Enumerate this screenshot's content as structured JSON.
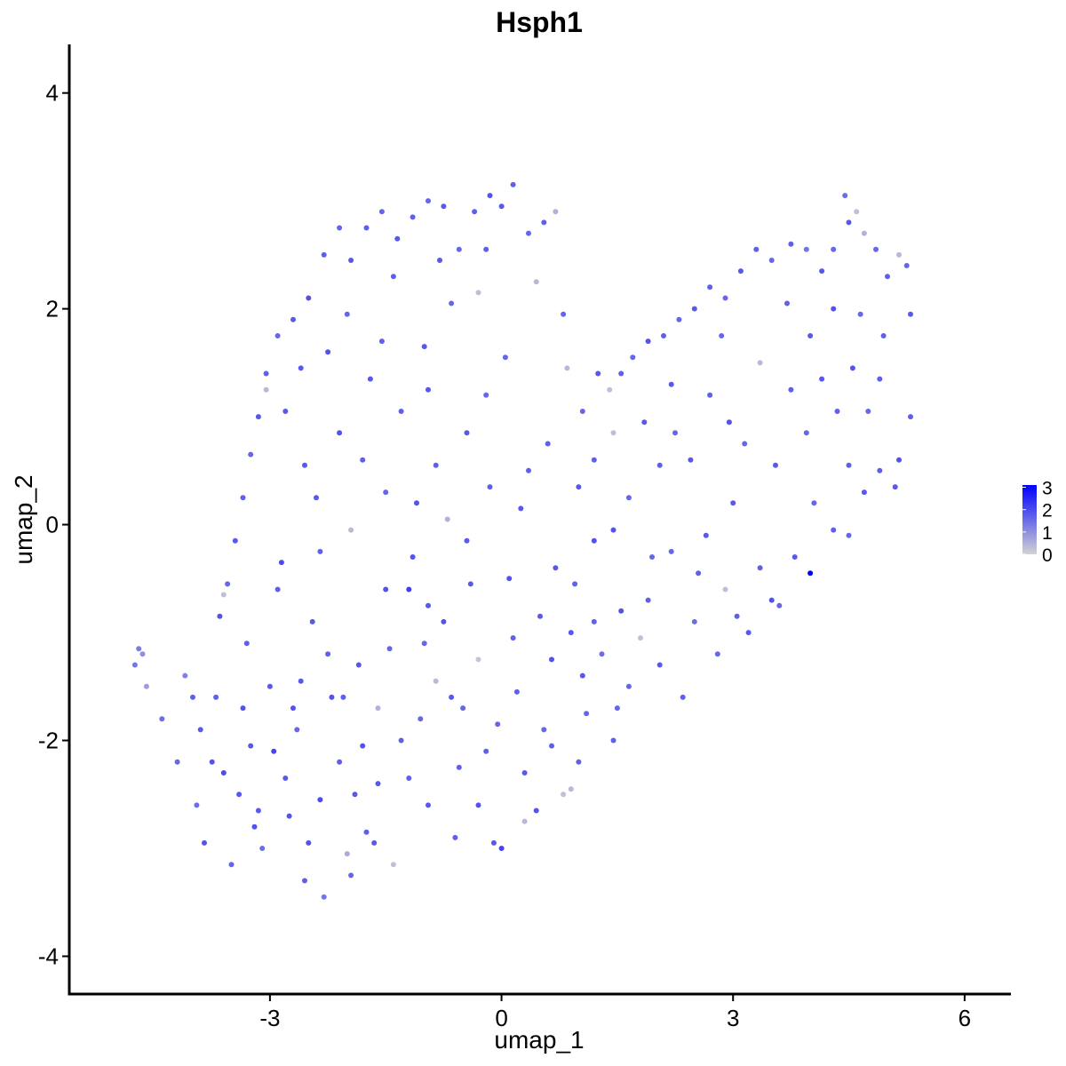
{
  "chart_data": {
    "type": "scatter",
    "title": "Hsph1",
    "xlabel": "umap_1",
    "ylabel": "umap_2",
    "xlim": [
      -5.6,
      6.6
    ],
    "ylim": [
      -4.35,
      4.45
    ],
    "x_ticks": [
      -3,
      0,
      3,
      6
    ],
    "x_tick_labels": [
      "-3",
      "0",
      "3",
      "6"
    ],
    "y_ticks": [
      -4,
      -2,
      0,
      2,
      4
    ],
    "y_tick_labels": [
      "-4",
      "-2",
      "0",
      "2",
      "4"
    ],
    "grid": false,
    "color_scale": {
      "low_color": "#d3d3d3",
      "high_color": "#0000ff",
      "min": 0,
      "max": 3.1,
      "legend_ticks": [
        0,
        1,
        2,
        3
      ],
      "legend_tick_labels": [
        "0",
        "1",
        "2",
        "3"
      ],
      "legend_placement": "right"
    },
    "points": [
      [
        -4.75,
        -1.3,
        1.4
      ],
      [
        -4.7,
        -1.15,
        1.3
      ],
      [
        -4.65,
        -1.2,
        1.0
      ],
      [
        -4.6,
        -1.5,
        0.8
      ],
      [
        -4.4,
        -1.8,
        1.5
      ],
      [
        -4.2,
        -2.2,
        1.6
      ],
      [
        -4.1,
        -1.4,
        1.2
      ],
      [
        -3.95,
        -2.6,
        1.5
      ],
      [
        -3.85,
        -2.95,
        1.9
      ],
      [
        -3.7,
        -1.6,
        1.7
      ],
      [
        -3.6,
        -2.3,
        2.0
      ],
      [
        -3.5,
        -3.15,
        1.6
      ],
      [
        -3.4,
        -2.5,
        1.8
      ],
      [
        -3.3,
        -1.1,
        1.7
      ],
      [
        -3.2,
        -2.8,
        1.9
      ],
      [
        -3.1,
        -3.0,
        1.5
      ],
      [
        -3.0,
        -1.5,
        1.8
      ],
      [
        -2.95,
        -2.1,
        2.1
      ],
      [
        -2.85,
        -0.35,
        2.0
      ],
      [
        -2.75,
        -2.7,
        1.9
      ],
      [
        -2.65,
        -1.9,
        1.6
      ],
      [
        -2.55,
        -3.3,
        1.7
      ],
      [
        -2.45,
        -0.9,
        1.8
      ],
      [
        -2.35,
        -2.55,
        2.0
      ],
      [
        -2.3,
        -3.45,
        1.4
      ],
      [
        -2.2,
        -1.6,
        1.9
      ],
      [
        -2.1,
        -2.2,
        1.7
      ],
      [
        -2.0,
        -3.05,
        0.6
      ],
      [
        -1.95,
        -3.25,
        1.6
      ],
      [
        -1.85,
        -1.3,
        1.8
      ],
      [
        -1.75,
        -2.85,
        1.7
      ],
      [
        -1.6,
        -2.4,
        1.8
      ],
      [
        -1.5,
        -0.6,
        1.9
      ],
      [
        -1.4,
        -3.15,
        0.3
      ],
      [
        -1.3,
        -2.0,
        1.7
      ],
      [
        -1.2,
        -0.6,
        2.2
      ],
      [
        -1.05,
        -1.8,
        1.6
      ],
      [
        -0.95,
        -2.6,
        1.8
      ],
      [
        -0.85,
        -1.45,
        0.4
      ],
      [
        -0.75,
        -0.9,
        1.9
      ],
      [
        -0.6,
        -2.9,
        1.7
      ],
      [
        -0.5,
        -1.7,
        1.6
      ],
      [
        -0.4,
        -0.55,
        1.8
      ],
      [
        -0.3,
        -1.25,
        0.2
      ],
      [
        -0.2,
        -2.1,
        1.7
      ],
      [
        -0.1,
        -2.95,
        1.8
      ],
      [
        0.0,
        -3.0,
        2.1
      ],
      [
        0.1,
        -0.5,
        1.9
      ],
      [
        0.2,
        -1.55,
        1.7
      ],
      [
        0.3,
        -2.75,
        0.4
      ],
      [
        0.45,
        -2.65,
        1.9
      ],
      [
        0.55,
        -1.9,
        1.6
      ],
      [
        0.7,
        -0.4,
        1.8
      ],
      [
        0.8,
        -2.5,
        0.3
      ],
      [
        0.9,
        -1.0,
        1.8
      ],
      [
        1.0,
        -2.2,
        1.7
      ],
      [
        1.1,
        -1.75,
        1.6
      ],
      [
        1.2,
        -0.15,
        1.9
      ],
      [
        1.3,
        -1.2,
        1.5
      ],
      [
        1.45,
        -2.0,
        1.7
      ],
      [
        1.55,
        -0.8,
        1.9
      ],
      [
        1.65,
        -1.5,
        1.6
      ],
      [
        1.8,
        -1.05,
        0.3
      ],
      [
        1.9,
        -0.7,
        1.7
      ],
      [
        2.05,
        -1.3,
        1.8
      ],
      [
        2.2,
        -0.25,
        1.6
      ],
      [
        2.35,
        -1.6,
        1.7
      ],
      [
        2.5,
        -0.9,
        1.5
      ],
      [
        2.65,
        -0.1,
        1.8
      ],
      [
        2.8,
        -1.2,
        1.6
      ],
      [
        2.9,
        -0.6,
        0.3
      ],
      [
        3.05,
        -0.85,
        1.7
      ],
      [
        3.2,
        -1.0,
        1.8
      ],
      [
        3.35,
        -0.4,
        1.7
      ],
      [
        3.5,
        -0.7,
        1.9
      ],
      [
        3.6,
        -0.75,
        1.6
      ],
      [
        3.8,
        -0.3,
        1.8
      ],
      [
        4.0,
        -0.45,
        3.1
      ],
      [
        4.3,
        -0.05,
        1.7
      ],
      [
        4.5,
        -0.1,
        1.6
      ],
      [
        4.7,
        0.3,
        1.8
      ],
      [
        4.9,
        0.5,
        1.7
      ],
      [
        5.15,
        0.6,
        1.9
      ],
      [
        5.3,
        1.0,
        1.7
      ],
      [
        5.3,
        1.95,
        1.8
      ],
      [
        5.25,
        2.4,
        1.6
      ],
      [
        5.15,
        2.5,
        0.4
      ],
      [
        5.0,
        2.3,
        1.7
      ],
      [
        4.85,
        2.55,
        1.6
      ],
      [
        4.7,
        2.7,
        0.5
      ],
      [
        4.6,
        2.9,
        0.3
      ],
      [
        4.5,
        2.8,
        1.8
      ],
      [
        4.45,
        3.05,
        1.5
      ],
      [
        4.3,
        2.55,
        1.6
      ],
      [
        4.15,
        2.35,
        1.8
      ],
      [
        3.95,
        2.55,
        1.4
      ],
      [
        3.75,
        2.6,
        1.7
      ],
      [
        3.5,
        2.45,
        1.6
      ],
      [
        3.3,
        2.55,
        1.7
      ],
      [
        3.1,
        2.35,
        1.8
      ],
      [
        2.9,
        2.1,
        1.6
      ],
      [
        2.7,
        2.2,
        1.7
      ],
      [
        2.5,
        2.0,
        1.8
      ],
      [
        2.3,
        1.9,
        1.6
      ],
      [
        2.1,
        1.75,
        1.7
      ],
      [
        1.9,
        1.7,
        1.9
      ],
      [
        1.7,
        1.55,
        1.6
      ],
      [
        1.55,
        1.4,
        1.7
      ],
      [
        1.4,
        1.25,
        0.3
      ],
      [
        1.25,
        1.4,
        1.8
      ],
      [
        1.05,
        1.05,
        1.6
      ],
      [
        0.85,
        1.45,
        0.4
      ],
      [
        0.7,
        2.9,
        0.5
      ],
      [
        0.55,
        2.8,
        1.7
      ],
      [
        0.35,
        2.7,
        1.6
      ],
      [
        0.15,
        3.15,
        1.7
      ],
      [
        0.0,
        2.95,
        1.8
      ],
      [
        -0.15,
        3.05,
        1.9
      ],
      [
        -0.35,
        2.9,
        1.7
      ],
      [
        -0.55,
        2.55,
        1.6
      ],
      [
        -0.75,
        2.95,
        1.8
      ],
      [
        -0.95,
        3.0,
        1.6
      ],
      [
        -1.15,
        2.85,
        1.7
      ],
      [
        -1.35,
        2.65,
        1.8
      ],
      [
        -1.55,
        2.9,
        1.6
      ],
      [
        -1.75,
        2.75,
        1.7
      ],
      [
        -1.95,
        2.45,
        1.8
      ],
      [
        -2.1,
        2.75,
        1.6
      ],
      [
        -2.3,
        2.5,
        1.7
      ],
      [
        -2.5,
        2.1,
        1.9
      ],
      [
        -2.7,
        1.9,
        1.8
      ],
      [
        -2.9,
        1.75,
        1.6
      ],
      [
        -3.05,
        1.4,
        1.7
      ],
      [
        -3.15,
        1.0,
        1.8
      ],
      [
        -3.25,
        0.65,
        1.6
      ],
      [
        -3.35,
        0.25,
        1.7
      ],
      [
        -3.45,
        -0.15,
        1.8
      ],
      [
        -3.55,
        -0.55,
        1.6
      ],
      [
        -3.65,
        -0.85,
        1.9
      ],
      [
        -3.6,
        -0.65,
        0.3
      ],
      [
        -3.05,
        1.25,
        0.4
      ],
      [
        -2.55,
        0.55,
        1.8
      ],
      [
        -2.35,
        -0.25,
        1.7
      ],
      [
        -2.1,
        0.85,
        1.9
      ],
      [
        -1.95,
        -0.05,
        0.4
      ],
      [
        -1.7,
        1.35,
        1.8
      ],
      [
        -1.5,
        0.3,
        1.6
      ],
      [
        -1.3,
        1.05,
        1.7
      ],
      [
        -1.15,
        -0.3,
        1.9
      ],
      [
        -1.0,
        1.65,
        1.8
      ],
      [
        -0.85,
        0.55,
        1.7
      ],
      [
        -0.65,
        2.05,
        1.6
      ],
      [
        -0.45,
        0.85,
        1.8
      ],
      [
        -0.3,
        2.15,
        0.3
      ],
      [
        -0.15,
        0.35,
        1.7
      ],
      [
        0.05,
        1.55,
        1.6
      ],
      [
        0.25,
        0.15,
        1.8
      ],
      [
        0.45,
        2.25,
        0.4
      ],
      [
        0.6,
        0.75,
        1.7
      ],
      [
        0.8,
        1.95,
        1.6
      ],
      [
        1.0,
        0.35,
        1.8
      ],
      [
        1.2,
        0.6,
        1.7
      ],
      [
        1.45,
        0.85,
        0.3
      ],
      [
        1.65,
        0.25,
        1.6
      ],
      [
        1.85,
        0.95,
        1.8
      ],
      [
        2.05,
        0.55,
        1.7
      ],
      [
        2.25,
        0.85,
        1.6
      ],
      [
        2.45,
        0.6,
        1.8
      ],
      [
        2.7,
        1.2,
        1.7
      ],
      [
        2.95,
        0.95,
        1.9
      ],
      [
        3.15,
        0.75,
        1.6
      ],
      [
        3.35,
        1.5,
        0.4
      ],
      [
        3.55,
        0.55,
        1.8
      ],
      [
        3.75,
        1.25,
        1.7
      ],
      [
        3.95,
        0.85,
        1.6
      ],
      [
        4.15,
        1.35,
        1.8
      ],
      [
        4.35,
        1.05,
        1.7
      ],
      [
        4.55,
        1.45,
        1.9
      ],
      [
        4.75,
        1.05,
        1.6
      ],
      [
        4.95,
        1.75,
        1.7
      ],
      [
        -3.9,
        -1.9,
        1.8
      ],
      [
        -3.35,
        -1.7,
        1.9
      ],
      [
        -2.8,
        -2.35,
        1.8
      ],
      [
        -2.25,
        -1.2,
        1.7
      ],
      [
        -1.8,
        -2.05,
        1.9
      ],
      [
        -1.45,
        -1.15,
        1.6
      ],
      [
        -0.95,
        -0.75,
        1.8
      ],
      [
        -0.55,
        -2.25,
        1.7
      ],
      [
        -0.05,
        -1.85,
        1.6
      ],
      [
        0.5,
        -0.85,
        1.8
      ],
      [
        0.95,
        -0.55,
        1.7
      ],
      [
        1.45,
        -0.05,
        1.9
      ],
      [
        1.95,
        -0.3,
        1.6
      ],
      [
        2.55,
        -0.45,
        1.7
      ],
      [
        3.0,
        0.2,
        1.8
      ],
      [
        -0.7,
        0.05,
        0.5
      ],
      [
        0.9,
        -2.45,
        0.4
      ],
      [
        -2.9,
        -0.6,
        1.7
      ],
      [
        -2.6,
        -1.45,
        1.8
      ],
      [
        -1.6,
        -1.7,
        0.5
      ],
      [
        2.2,
        1.3,
        1.8
      ],
      [
        2.85,
        1.75,
        1.6
      ],
      [
        3.7,
        2.05,
        1.7
      ],
      [
        4.0,
        1.75,
        1.8
      ],
      [
        4.3,
        2.0,
        1.9
      ],
      [
        4.65,
        1.95,
        1.6
      ],
      [
        4.9,
        1.35,
        1.7
      ],
      [
        5.1,
        0.35,
        1.8
      ],
      [
        4.5,
        0.55,
        1.7
      ],
      [
        4.05,
        0.2,
        1.6
      ],
      [
        -3.75,
        -2.2,
        1.9
      ],
      [
        -3.15,
        -2.65,
        1.8
      ],
      [
        -2.5,
        -2.95,
        1.9
      ],
      [
        -1.9,
        -2.5,
        1.8
      ],
      [
        -1.2,
        -2.35,
        1.7
      ],
      [
        -0.3,
        -2.6,
        1.9
      ],
      [
        0.3,
        -2.3,
        1.8
      ],
      [
        0.65,
        -2.05,
        1.7
      ],
      [
        1.05,
        -1.4,
        1.8
      ],
      [
        1.5,
        -1.7,
        1.6
      ],
      [
        -4.0,
        -1.6,
        1.7
      ],
      [
        -3.25,
        -2.05,
        1.8
      ],
      [
        -2.7,
        -1.7,
        1.9
      ],
      [
        -2.05,
        -1.6,
        1.7
      ],
      [
        -1.65,
        -2.95,
        1.8
      ],
      [
        -1.0,
        -1.1,
        1.6
      ],
      [
        -0.65,
        -1.6,
        1.8
      ],
      [
        0.15,
        -1.05,
        1.7
      ],
      [
        0.65,
        -1.25,
        1.9
      ],
      [
        1.2,
        -0.9,
        1.7
      ],
      [
        -2.4,
        0.25,
        1.8
      ],
      [
        -1.8,
        0.6,
        1.7
      ],
      [
        -1.1,
        0.2,
        1.9
      ],
      [
        -0.45,
        -0.15,
        1.8
      ],
      [
        0.35,
        0.5,
        1.7
      ],
      [
        -2.6,
        1.45,
        1.8
      ],
      [
        -2.0,
        1.95,
        1.6
      ],
      [
        -1.4,
        2.3,
        1.7
      ],
      [
        -0.8,
        2.45,
        1.8
      ],
      [
        -0.2,
        2.55,
        1.7
      ],
      [
        -2.8,
        1.05,
        1.8
      ],
      [
        -2.25,
        1.6,
        1.9
      ],
      [
        -1.55,
        1.7,
        1.7
      ],
      [
        -0.95,
        1.25,
        1.8
      ],
      [
        -0.2,
        1.2,
        1.6
      ]
    ]
  }
}
